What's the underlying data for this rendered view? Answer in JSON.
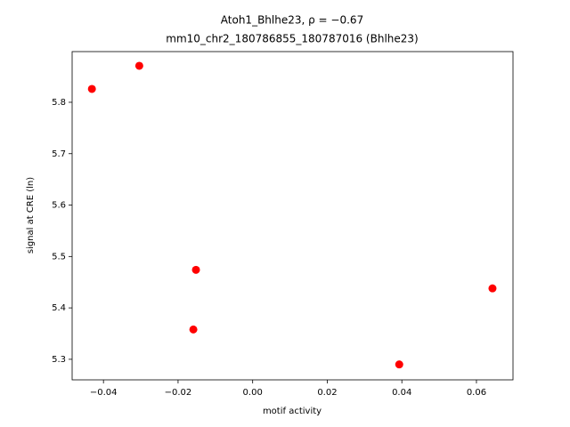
{
  "chart_data": {
    "type": "scatter",
    "title": "Atoh1_Bhlhe23, ρ = −0.67",
    "subtitle": "mm10_chr2_180786855_180787016 (Bhlhe23)",
    "x_label": "motif activity",
    "y_label": "signal at CRE (ln)",
    "color": "#ff0000",
    "x": [
      -0.0431,
      -0.0304,
      -0.0152,
      -0.0159,
      0.0393,
      0.0643
    ],
    "values": [
      5.826,
      5.871,
      5.474,
      5.358,
      5.29,
      5.438
    ],
    "xlim": [
      -0.0484,
      0.0698
    ],
    "ylim": [
      5.26,
      5.8986
    ],
    "xticks": [
      {
        "value": -0.04,
        "label": "−0.04"
      },
      {
        "value": -0.02,
        "label": "−0.02"
      },
      {
        "value": 0,
        "label": "0.00"
      },
      0.02,
      0.04,
      0.06
    ],
    "yticks": [
      5.3,
      5.4,
      5.5,
      5.6,
      5.7,
      5.8
    ]
  }
}
